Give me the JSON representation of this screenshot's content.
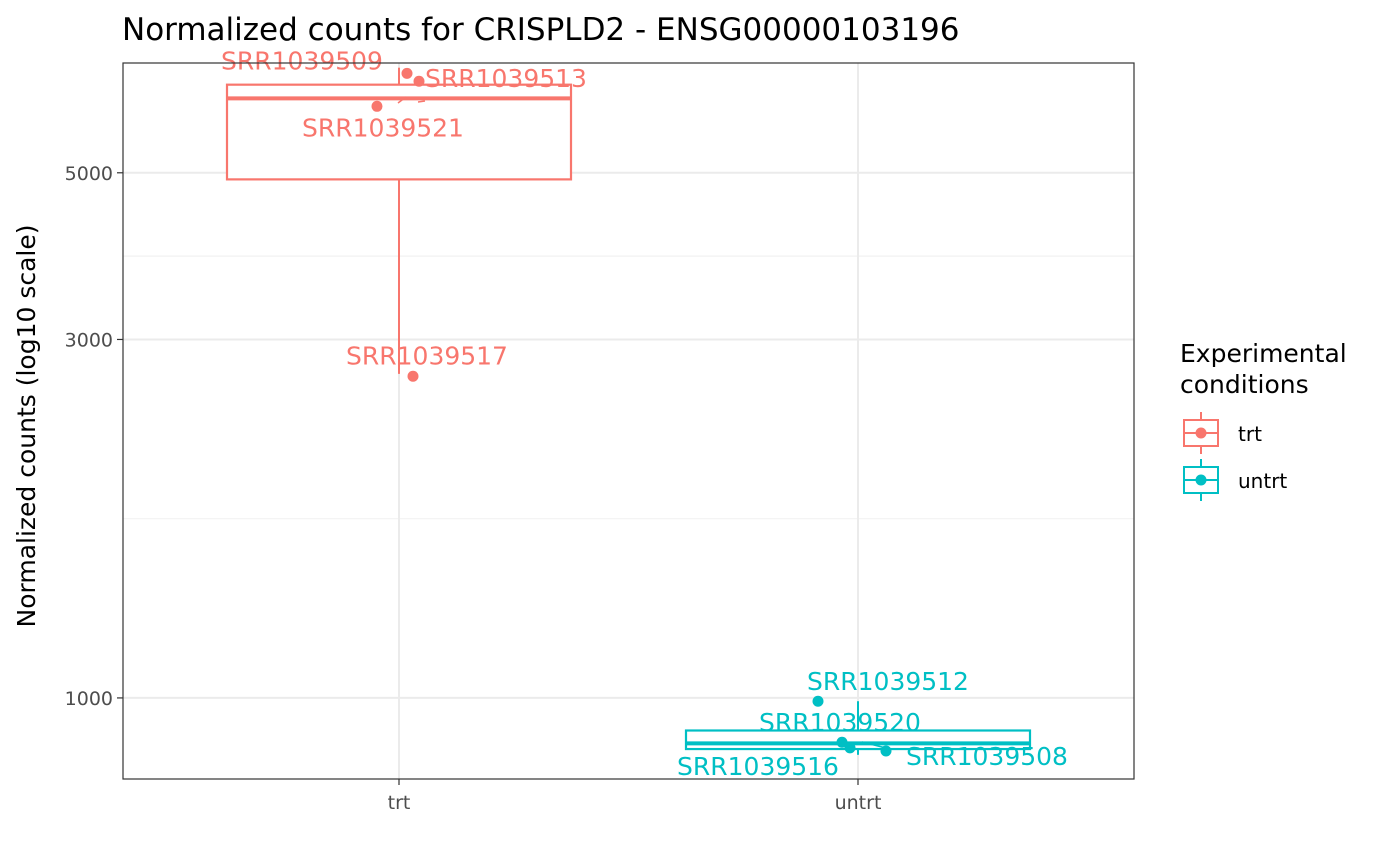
{
  "chart_data": {
    "type": "boxplot",
    "title": "Normalized counts for CRISPLD2 - ENSG00000103196",
    "xlabel": "",
    "ylabel": "Normalized counts (log10 scale)",
    "yscale": "log10",
    "ylim": [
      780,
      7000
    ],
    "yticks": [
      1000,
      3000,
      5000
    ],
    "ytick_labels": [
      "1000",
      "3000",
      "5000"
    ],
    "categories": [
      "trt",
      "untrt"
    ],
    "grid": true,
    "legend": {
      "title_lines": [
        "Experimental",
        "conditions"
      ],
      "placement": "right",
      "entries": [
        {
          "label": "trt",
          "color": "#F8766D"
        },
        {
          "label": "untrt",
          "color": "#00BFC4"
        }
      ]
    },
    "groups": [
      {
        "name": "trt",
        "color": "#F8766D",
        "box": {
          "min": 2700,
          "q1": 4900,
          "median": 6280,
          "q3": 6550,
          "max": 6900
        },
        "points": [
          {
            "label": "SRR1039509",
            "y": 6780
          },
          {
            "label": "SRR1039513",
            "y": 6620
          },
          {
            "label": "SRR1039521",
            "y": 6130
          },
          {
            "label": "SRR1039517",
            "y": 2680
          }
        ]
      },
      {
        "name": "untrt",
        "color": "#00BFC4",
        "box": {
          "min": 840,
          "q1": 855,
          "median": 870,
          "q3": 905,
          "max": 990
        },
        "points": [
          {
            "label": "SRR1039512",
            "y": 990
          },
          {
            "label": "SRR1039520",
            "y": 873
          },
          {
            "label": "SRR1039516",
            "y": 858
          },
          {
            "label": "SRR1039508",
            "y": 850
          }
        ]
      }
    ]
  }
}
